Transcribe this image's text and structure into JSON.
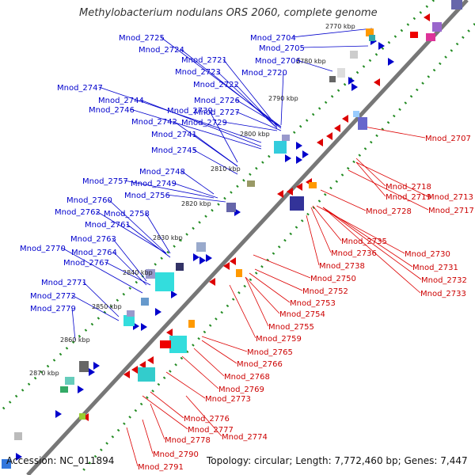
{
  "title": "Methylobacterium nodulans ORS 2060, complete genome",
  "accession": "Accession: NC_011894",
  "summary": "Topology: circular; Length: 7,772,460 bp; Genes: 7,447",
  "colors": {
    "forward": "#0000cc",
    "reverse": "#dd0000",
    "backbone": "#777777",
    "tick_dots": "#228b22"
  },
  "kbp_labels": [
    "2770 kbp",
    "2780 kbp",
    "2790 kbp",
    "2800 kbp",
    "2810 kbp",
    "2820 kbp",
    "2830 kbp",
    "2840 kbp",
    "2850 kbp",
    "2860 kbp",
    "2870 kbp"
  ],
  "forward_genes": [
    "Mnod_2725",
    "Mnod_2724",
    "Mnod_2721",
    "Mnod_2723",
    "Mnod_2722",
    "Mnod_2704",
    "Mnod_2705",
    "Mnod_2706",
    "Mnod_2720",
    "Mnod_2747",
    "Mnod_2744",
    "Mnod_2746",
    "Mnod_2739",
    "Mnod_2742",
    "Mnod_2726",
    "Mnod_2727",
    "Mnod_2729",
    "Mnod_2741",
    "Mnod_2745",
    "Mnod_2748",
    "Mnod_2757",
    "Mnod_2749",
    "Mnod_2756",
    "Mnod_2760",
    "Mnod_2762",
    "Mnod_2758",
    "Mnod_2761",
    "Mnod_2763",
    "Mnod_2770",
    "Mnod_2764",
    "Mnod_2767",
    "Mnod_2771",
    "Mnod_2772",
    "Mnod_2779"
  ],
  "reverse_genes": [
    "Mnod_2707",
    "Mnod_2718",
    "Mnod_2713",
    "Mnod_2719",
    "Mnod_2717",
    "Mnod_2728",
    "Mnod_2735",
    "Mnod_2730",
    "Mnod_2736",
    "Mnod_2731",
    "Mnod_2738",
    "Mnod_2732",
    "Mnod_2750",
    "Mnod_2733",
    "Mnod_2752",
    "Mnod_2753",
    "Mnod_2754",
    "Mnod_2755",
    "Mnod_2759",
    "Mnod_2765",
    "Mnod_2766",
    "Mnod_2768",
    "Mnod_2769",
    "Mnod_2773",
    "Mnod_2776",
    "Mnod_2777",
    "Mnod_2774",
    "Mnod_2778",
    "Mnod_2790",
    "Mnod_2791"
  ]
}
